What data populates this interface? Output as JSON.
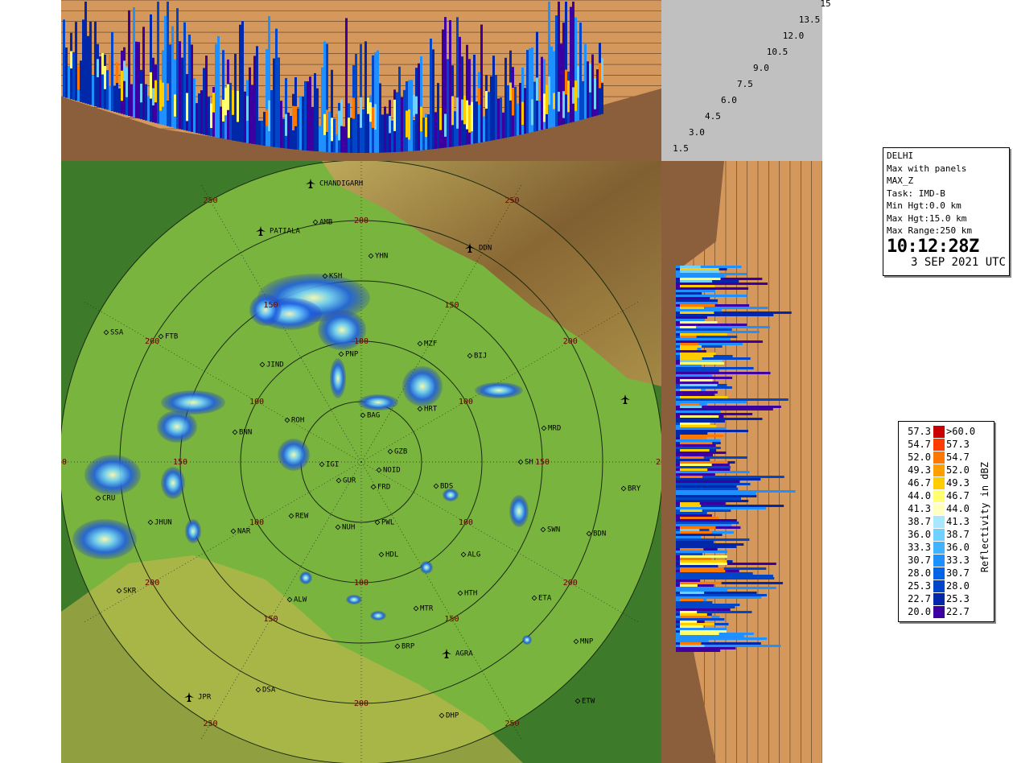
{
  "info": {
    "site": "DELHI",
    "product": "Max with panels",
    "field": "MAX_Z",
    "task": "Task: IMD-B",
    "min_hgt": "Min Hgt:0.0 km",
    "max_hgt": "Max Hgt:15.0 km",
    "max_range": "Max Range:250 km",
    "time": "10:12:28Z",
    "date": "3 SEP 2021 UTC"
  },
  "height_labels": [
    "1.5",
    "3.0",
    "4.5",
    "6.0",
    "7.5",
    "9.0",
    "10.5",
    "12.0",
    "13.5",
    "15"
  ],
  "range_rings": [
    "100",
    "150",
    "200",
    "250"
  ],
  "stations": [
    "CHANDIGARH",
    "PATIALA",
    "AMB",
    "DDN",
    "YHN",
    "KSH",
    "PNP",
    "JIND",
    "SSA",
    "FTB",
    "MZF",
    "BIJ",
    "HRT",
    "ROH",
    "BAG",
    "BNN",
    "MRD",
    "GZB",
    "NOID",
    "SH",
    "IGI",
    "GUR",
    "FRD",
    "BDS",
    "BRY",
    "CRU",
    "JHUN",
    "REW",
    "PWL",
    "NAR",
    "SWN",
    "BDN",
    "NUH",
    "HDL",
    "ALG",
    "SKR",
    "ALW",
    "HTH",
    "ETA",
    "MTR",
    "BRP",
    "AGRA",
    "MNP",
    "JPR",
    "DSA",
    "DHP",
    "ETW"
  ],
  "legend": {
    "title": "Reflectivity in dBZ",
    "rows": [
      {
        "low": "57.3",
        "high": ">60.0",
        "color": "#c80000"
      },
      {
        "low": "54.7",
        "high": "57.3",
        "color": "#ff3c00"
      },
      {
        "low": "52.0",
        "high": "54.7",
        "color": "#ff7800"
      },
      {
        "low": "49.3",
        "high": "52.0",
        "color": "#ffa000"
      },
      {
        "low": "46.7",
        "high": "49.3",
        "color": "#ffcc00"
      },
      {
        "low": "44.0",
        "high": "46.7",
        "color": "#ffff70"
      },
      {
        "low": "41.3",
        "high": "44.0",
        "color": "#ffffc0"
      },
      {
        "low": "38.7",
        "high": "41.3",
        "color": "#a8e8ff"
      },
      {
        "low": "36.0",
        "high": "38.7",
        "color": "#70d0ff"
      },
      {
        "low": "33.3",
        "high": "36.0",
        "color": "#40b4ff"
      },
      {
        "low": "30.7",
        "high": "33.3",
        "color": "#1e90ff"
      },
      {
        "low": "28.0",
        "high": "30.7",
        "color": "#0064e6"
      },
      {
        "low": "25.3",
        "high": "28.0",
        "color": "#0046c8"
      },
      {
        "low": "22.7",
        "high": "25.3",
        "color": "#0028a8"
      },
      {
        "low": "20.0",
        "high": "22.7",
        "color": "#3c00a0"
      }
    ]
  }
}
